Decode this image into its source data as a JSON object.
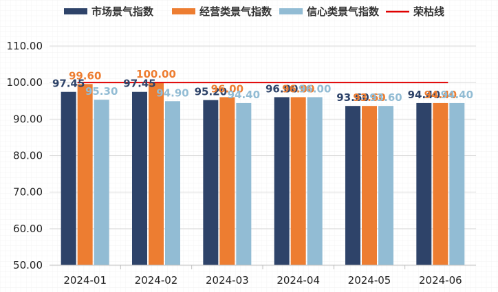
{
  "chart_data": {
    "type": "bar",
    "categories": [
      "2024-01",
      "2024-02",
      "2024-03",
      "2024-04",
      "2024-05",
      "2024-06"
    ],
    "series": [
      {
        "name": "市场景气指数",
        "color": "#2e4369",
        "values": [
          97.45,
          97.45,
          95.2,
          96.0,
          93.6,
          94.4
        ],
        "labels": [
          "97.45",
          "97.45",
          "95.20",
          "96.00",
          "93.60",
          "94.40"
        ]
      },
      {
        "name": "经营类景气指数",
        "color": "#ed7d31",
        "values": [
          99.6,
          100.0,
          96.0,
          96.0,
          93.6,
          94.4
        ],
        "labels": [
          "99.60",
          "100.00",
          "96.00",
          "96.00",
          "93.60",
          "94.40"
        ]
      },
      {
        "name": "信心类景气指数",
        "color": "#92bcd4",
        "values": [
          95.3,
          94.9,
          94.4,
          96.0,
          93.6,
          94.4
        ],
        "labels": [
          "95.30",
          "94.90",
          "94.40",
          "96.00",
          "93.60",
          "94.40"
        ]
      }
    ],
    "reference_line": {
      "name": "荣枯线",
      "value": 100,
      "color": "#e00000"
    },
    "yticks": [
      "50.00",
      "60.00",
      "70.00",
      "80.00",
      "90.00",
      "100.00",
      "110.00"
    ],
    "ylim": [
      50,
      110
    ],
    "grid": true,
    "legend_position": "top",
    "title": "",
    "xlabel": "",
    "ylabel": ""
  }
}
